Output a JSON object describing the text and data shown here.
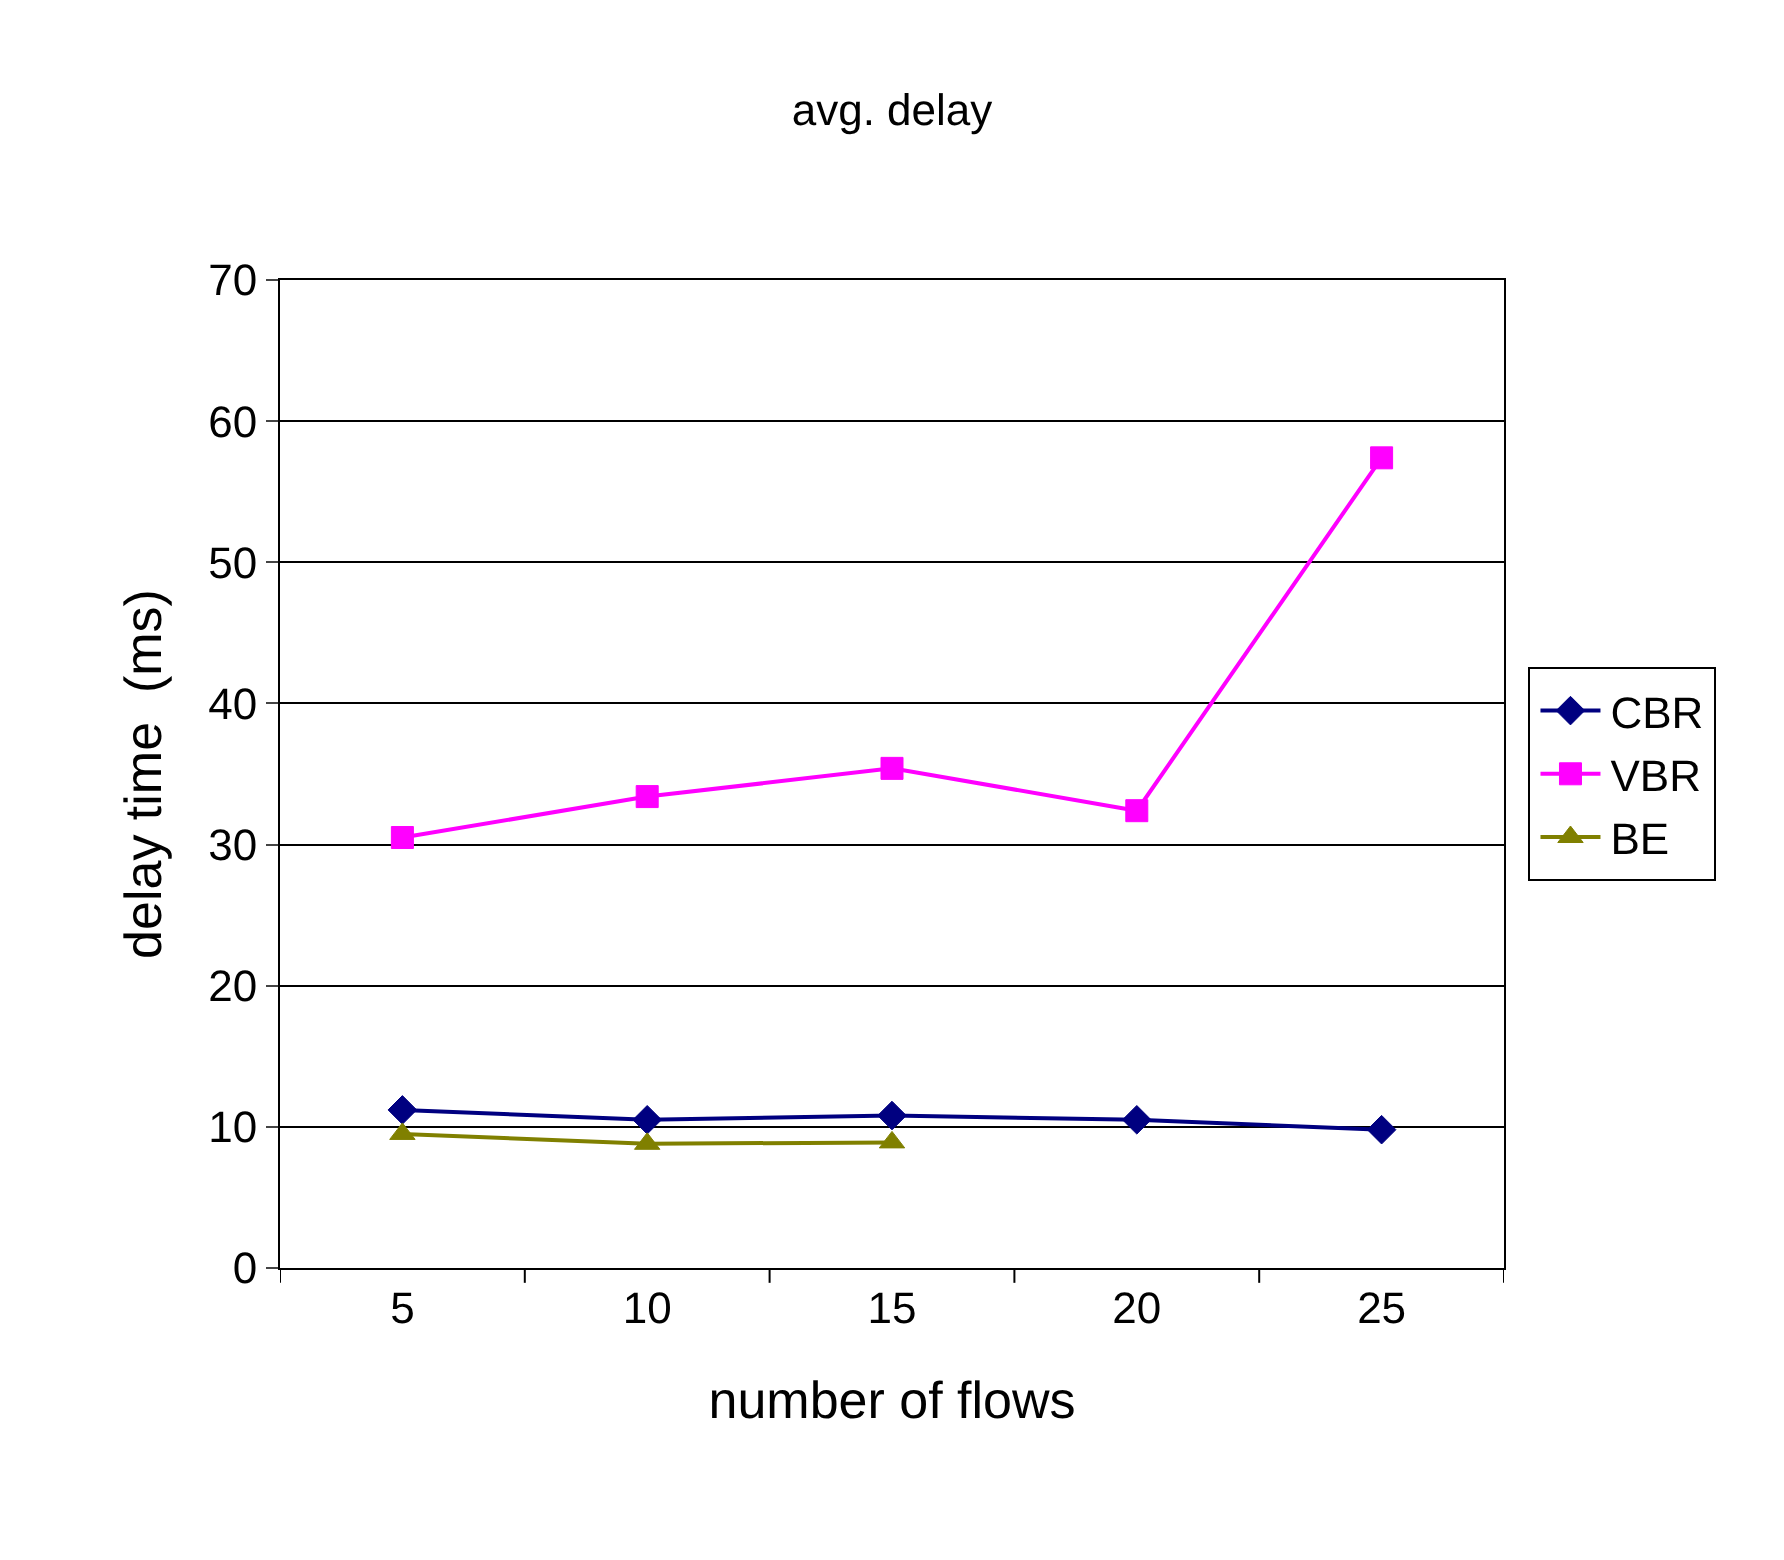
{
  "chart_data": {
    "type": "line",
    "title": "avg. delay",
    "xlabel": "number of flows",
    "ylabel": "delay time  (ms)",
    "categories": [
      "5",
      "10",
      "15",
      "20",
      "25"
    ],
    "series": [
      {
        "name": "CBR",
        "color": "#000080",
        "marker": "diamond",
        "values": [
          11.2,
          10.5,
          10.8,
          10.5,
          9.8
        ]
      },
      {
        "name": "VBR",
        "color": "#ff00ff",
        "marker": "square",
        "values": [
          30.5,
          33.4,
          35.4,
          32.4,
          57.4
        ]
      },
      {
        "name": "BE",
        "color": "#808000",
        "marker": "triangle",
        "values": [
          9.5,
          8.8,
          8.9,
          null,
          null
        ]
      }
    ],
    "ylim": [
      0,
      70
    ],
    "yticks": [
      0,
      10,
      20,
      30,
      40,
      50,
      60,
      70
    ],
    "grid": "y",
    "legend": "right",
    "line_style": "solid"
  }
}
